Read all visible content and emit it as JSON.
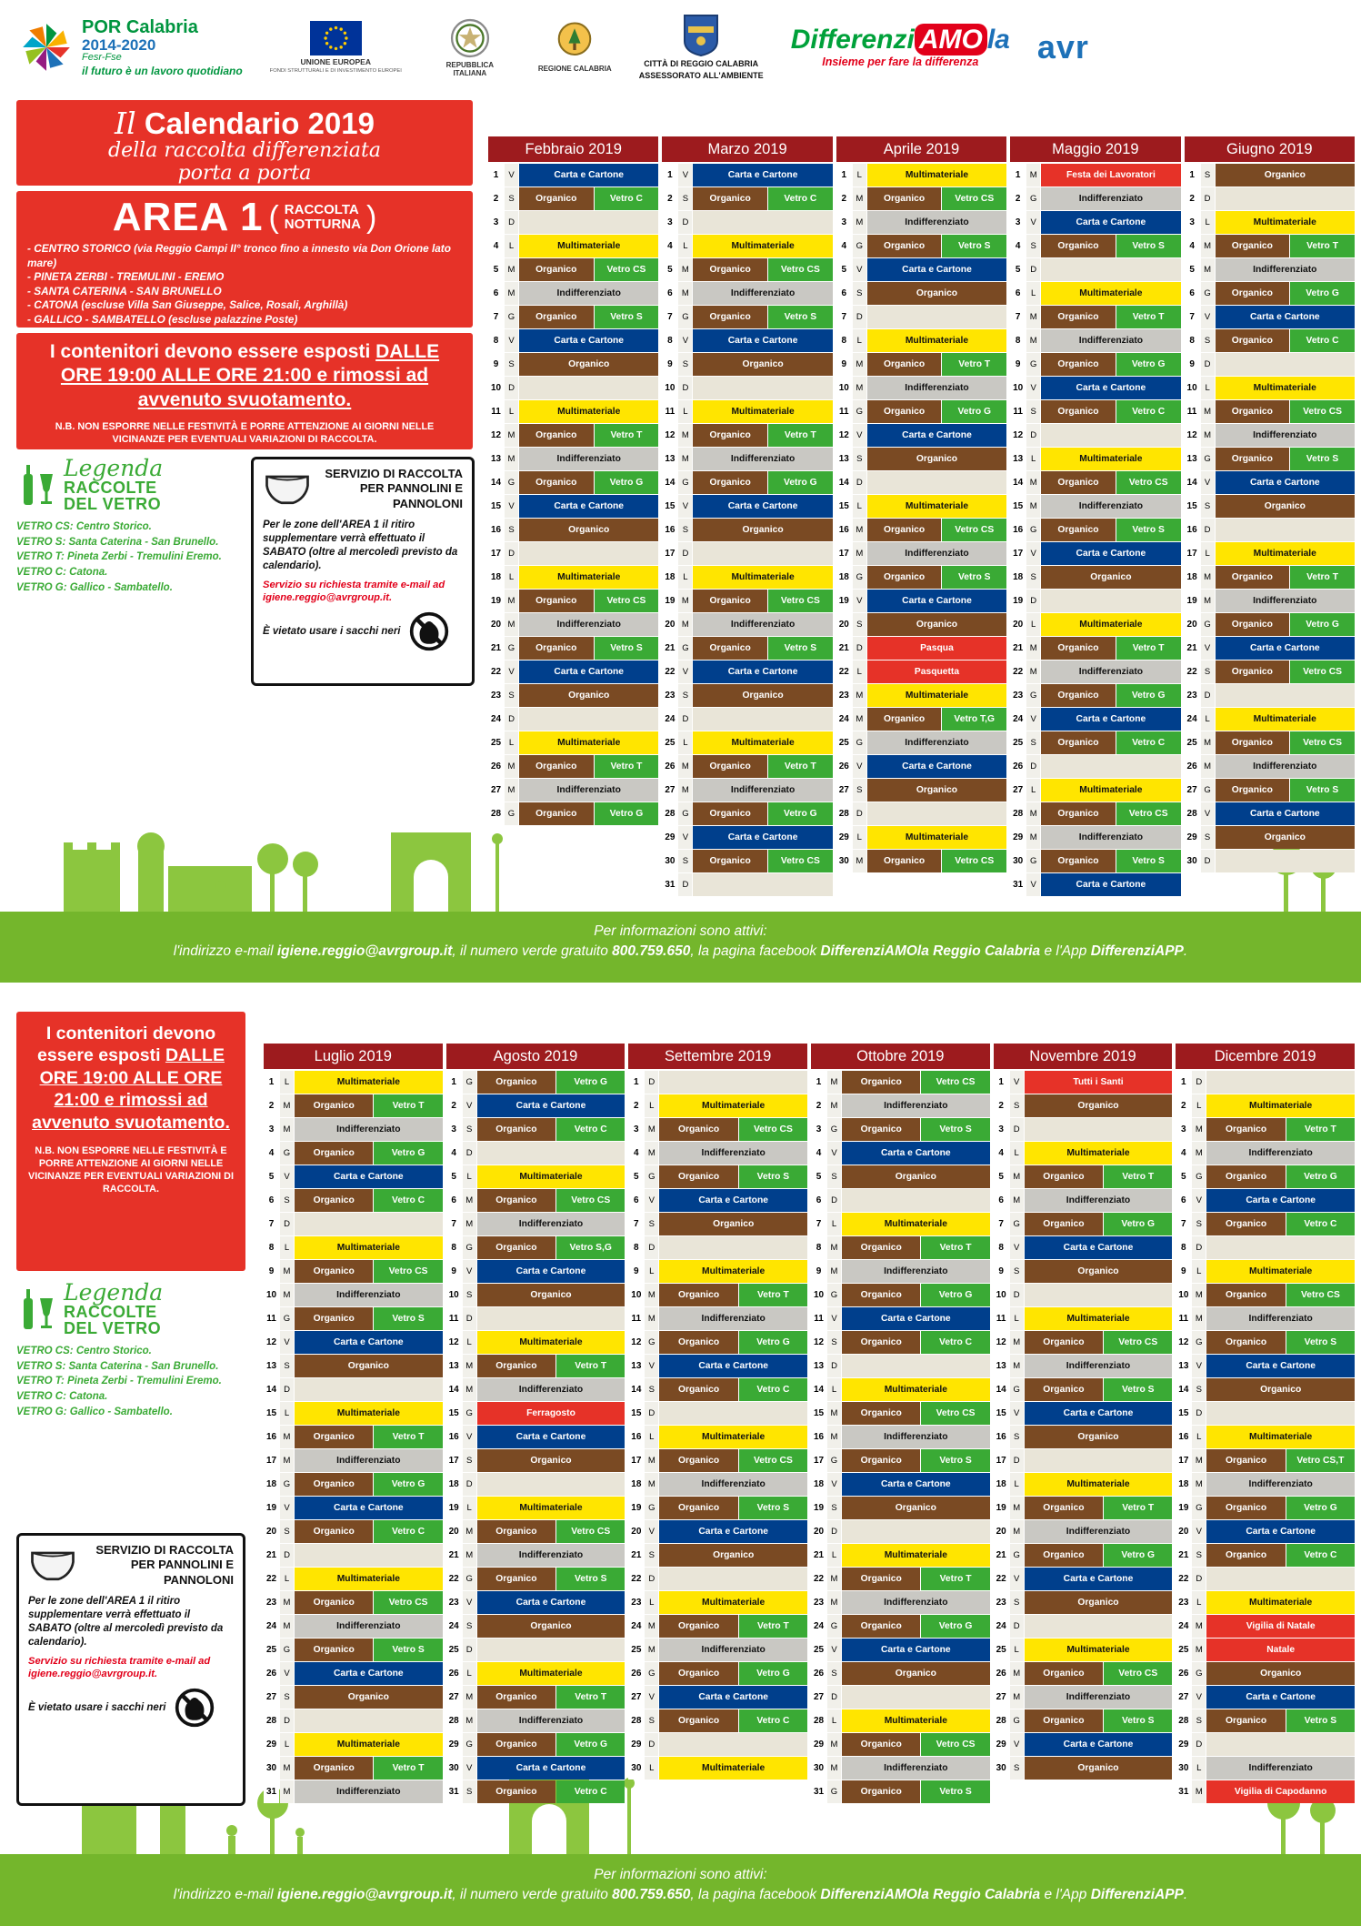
{
  "header": {
    "por": {
      "name": "POR Calabria",
      "years": "2014-2020",
      "program": "Fesr-Fse",
      "tagline": "il futuro è un lavoro quotidiano"
    },
    "eu": {
      "name": "UNIONE EUROPEA",
      "sub": "FONDI STRUTTURALI E DI INVESTIMENTO EUROPEI"
    },
    "repubblica": {
      "name": "REPUBBLICA ITALIANA"
    },
    "regione": {
      "name": "REGIONE CALABRIA"
    },
    "city": {
      "line1": "CITTÀ DI REGGIO CALABRIA",
      "line2": "ASSESSORATO ALL'AMBIENTE"
    },
    "differenziamola": {
      "part1": "Differenzi",
      "part2": "AMO",
      "part3": "la",
      "tagline": "Insieme per fare la differenza"
    },
    "avr": {
      "name": "avr"
    }
  },
  "intro": {
    "script1": "Il",
    "title": "Calendario 2019",
    "sub1": "della raccolta differenziata",
    "sub2": "porta a porta"
  },
  "area": {
    "title": "AREA 1",
    "paren_open": "(",
    "paren_close": ")",
    "subtitle_line1": "RACCOLTA",
    "subtitle_line2": "NOTTURNA",
    "zones": [
      "- CENTRO STORICO (via Reggio Campi II° tronco fino a innesto via Don Orione lato mare)",
      "- PINETA ZERBI - TREMULINI - EREMO",
      "- SANTA CATERINA - SAN BRUNELLO",
      "- CATONA (escluse Villa San Giuseppe, Salice, Rosali, Arghillà)",
      "- GALLICO - SAMBATELLO (escluse palazzine Poste)"
    ]
  },
  "notice": {
    "plain": "I contenitori devono essere esposti ",
    "underlined": "DALLE ORE 19:00 ALLE ORE 21:00 e rimossi ad avvenuto svuotamento.",
    "nb": "N.B. NON ESPORRE NELLE FESTIVITÀ E PORRE ATTENZIONE AI GIORNI NELLE VICINANZE PER EVENTUALI VARIAZIONI DI RACCOLTA."
  },
  "legend": {
    "title": "Legenda",
    "sub1": "RACCOLTE",
    "sub2": "DEL VETRO",
    "items": [
      {
        "code": "VETRO CS:",
        "desc": "Centro Storico."
      },
      {
        "code": "VETRO S:",
        "desc": "Santa Caterina - San Brunello."
      },
      {
        "code": "VETRO T:",
        "desc": "Pineta Zerbi - Tremulini Eremo."
      },
      {
        "code": "VETRO C:",
        "desc": "Catona."
      },
      {
        "code": "VETRO G:",
        "desc": "Gallico - Sambatello."
      }
    ]
  },
  "pannolini": {
    "title": "SERVIZIO DI RACCOLTA PER PANNOLINI E PANNOLONI",
    "body": "Per le zone dell'AREA 1 il ritiro supplementare verrà effettuato il SABATO (oltre al mercoledì previsto da calendario).",
    "service": "Servizio su richiesta tramite e-mail ad igiene.reggio@avrgroup.it.",
    "ban": "È vietato usare i sacchi neri"
  },
  "footer": {
    "intro": "Per informazioni sono attivi:",
    "part1": "l'indirizzo e-mail ",
    "email": "igiene.reggio@avrgroup.it",
    "part2": ", il numero verde gratuito ",
    "number": "800.759.650",
    "part3": ", la pagina facebook ",
    "facebook": "DifferenziAMOla Reggio Calabria",
    "part4": " e l'App ",
    "app": "DifferenziAPP",
    "part5": "."
  },
  "labels": {
    "C": "Carta e Cartone",
    "M": "Multimateriale",
    "I": "Indifferenziato",
    "O": "Organico",
    "V": "Vetro"
  },
  "colors": {
    "carta": "#003f8c",
    "multi": "#ffe500",
    "indiff": "#c9c8c3",
    "organico": "#7a4a23",
    "vetro": "#3aaa35",
    "holiday": "#e63228",
    "empty": "#e9e5d8",
    "month_header": "#9d1b1e",
    "red_box": "#e63228",
    "green_strip": "#74b62c",
    "silhouette": "#8cc63f",
    "legend_green": "#3aaa35"
  },
  "months_top": [
    {
      "name": "Febbraio 2019",
      "days": [
        "V|C",
        "S|O:C",
        "D|",
        "L|M",
        "M|O:CS",
        "M|I",
        "G|O:S",
        "V|C",
        "S|O",
        "D|",
        "L|M",
        "M|O:T",
        "M|I",
        "G|O:G",
        "V|C",
        "S|O",
        "D|",
        "L|M",
        "M|O:CS",
        "M|I",
        "G|O:S",
        "V|C",
        "S|O",
        "D|",
        "L|M",
        "M|O:T",
        "M|I",
        "G|O:G"
      ]
    },
    {
      "name": "Marzo 2019",
      "days": [
        "V|C",
        "S|O:C",
        "D|",
        "L|M",
        "M|O:CS",
        "M|I",
        "G|O:S",
        "V|C",
        "S|O",
        "D|",
        "L|M",
        "M|O:T",
        "M|I",
        "G|O:G",
        "V|C",
        "S|O",
        "D|",
        "L|M",
        "M|O:CS",
        "M|I",
        "G|O:S",
        "V|C",
        "S|O",
        "D|",
        "L|M",
        "M|O:T",
        "M|I",
        "G|O:G",
        "V|C",
        "S|O:CS",
        "D|"
      ]
    },
    {
      "name": "Aprile 2019",
      "days": [
        "L|M",
        "M|O:CS",
        "M|I",
        "G|O:S",
        "V|C",
        "S|O",
        "D|",
        "L|M",
        "M|O:T",
        "M|I",
        "G|O:G",
        "V|C",
        "S|O",
        "D|",
        "L|M",
        "M|O:CS",
        "M|I",
        "G|O:S",
        "V|C",
        "S|O",
        "D|H:Pasqua",
        "L|H:Pasquetta",
        "M|M",
        "M|O:T,G",
        "G|I",
        "V|C",
        "S|O",
        "D|",
        "L|M",
        "M|O:CS"
      ]
    },
    {
      "name": "Maggio 2019",
      "days": [
        "M|H:Festa dei Lavoratori",
        "G|I",
        "V|C",
        "S|O:S",
        "D|",
        "L|M",
        "M|O:T",
        "M|I",
        "G|O:G",
        "V|C",
        "S|O:C",
        "D|",
        "L|M",
        "M|O:CS",
        "M|I",
        "G|O:S",
        "V|C",
        "S|O",
        "D|",
        "L|M",
        "M|O:T",
        "M|I",
        "G|O:G",
        "V|C",
        "S|O:C",
        "D|",
        "L|M",
        "M|O:CS",
        "M|I",
        "G|O:S",
        "V|C"
      ]
    },
    {
      "name": "Giugno 2019",
      "days": [
        "S|O",
        "D|",
        "L|M",
        "M|O:T",
        "M|I",
        "G|O:G",
        "V|C",
        "S|O:C",
        "D|",
        "L|M",
        "M|O:CS",
        "M|I",
        "G|O:S",
        "V|C",
        "S|O",
        "D|",
        "L|M",
        "M|O:T",
        "M|I",
        "G|O:G",
        "V|C",
        "S|O:CS",
        "D|",
        "L|M",
        "M|O:CS",
        "M|I",
        "G|O:S",
        "V|C",
        "S|O",
        "D|"
      ]
    }
  ],
  "months_bottom": [
    {
      "name": "Luglio 2019",
      "days": [
        "L|M",
        "M|O:T",
        "M|I",
        "G|O:G",
        "V|C",
        "S|O:C",
        "D|",
        "L|M",
        "M|O:CS",
        "M|I",
        "G|O:S",
        "V|C",
        "S|O",
        "D|",
        "L|M",
        "M|O:T",
        "M|I",
        "G|O:G",
        "V|C",
        "S|O:C",
        "D|",
        "L|M",
        "M|O:CS",
        "M|I",
        "G|O:S",
        "V|C",
        "S|O",
        "D|",
        "L|M",
        "M|O:T",
        "M|I"
      ]
    },
    {
      "name": "Agosto 2019",
      "days": [
        "G|O:G",
        "V|C",
        "S|O:C",
        "D|",
        "L|M",
        "M|O:CS",
        "M|I",
        "G|O:S,G",
        "V|C",
        "S|O",
        "D|",
        "L|M",
        "M|O:T",
        "M|I",
        "G|H:Ferragosto",
        "V|C",
        "S|O",
        "D|",
        "L|M",
        "M|O:CS",
        "M|I",
        "G|O:S",
        "V|C",
        "S|O",
        "D|",
        "L|M",
        "M|O:T",
        "M|I",
        "G|O:G",
        "V|C",
        "S|O:C"
      ]
    },
    {
      "name": "Settembre 2019",
      "days": [
        "D|",
        "L|M",
        "M|O:CS",
        "M|I",
        "G|O:S",
        "V|C",
        "S|O",
        "D|",
        "L|M",
        "M|O:T",
        "M|I",
        "G|O:G",
        "V|C",
        "S|O:C",
        "D|",
        "L|M",
        "M|O:CS",
        "M|I",
        "G|O:S",
        "V|C",
        "S|O",
        "D|",
        "L|M",
        "M|O:T",
        "M|I",
        "G|O:G",
        "V|C",
        "S|O:C",
        "D|",
        "L|M"
      ]
    },
    {
      "name": "Ottobre 2019",
      "days": [
        "M|O:CS",
        "M|I",
        "G|O:S",
        "V|C",
        "S|O",
        "D|",
        "L|M",
        "M|O:T",
        "M|I",
        "G|O:G",
        "V|C",
        "S|O:C",
        "D|",
        "L|M",
        "M|O:CS",
        "M|I",
        "G|O:S",
        "V|C",
        "S|O",
        "D|",
        "L|M",
        "M|O:T",
        "M|I",
        "G|O:G",
        "V|C",
        "S|O",
        "D|",
        "L|M",
        "M|O:CS",
        "M|I",
        "G|O:S"
      ]
    },
    {
      "name": "Novembre 2019",
      "days": [
        "V|H:Tutti i Santi",
        "S|O",
        "D|",
        "L|M",
        "M|O:T",
        "M|I",
        "G|O:G",
        "V|C",
        "S|O",
        "D|",
        "L|M",
        "M|O:CS",
        "M|I",
        "G|O:S",
        "V|C",
        "S|O",
        "D|",
        "L|M",
        "M|O:T",
        "M|I",
        "G|O:G",
        "V|C",
        "S|O",
        "D|",
        "L|M",
        "M|O:CS",
        "M|I",
        "G|O:S",
        "V|C",
        "S|O"
      ]
    },
    {
      "name": "Dicembre 2019",
      "days": [
        "D|",
        "L|M",
        "M|O:T",
        "M|I",
        "G|O:G",
        "V|C",
        "S|O:C",
        "D|",
        "L|M",
        "M|O:CS",
        "M|I",
        "G|O:S",
        "V|C",
        "S|O",
        "D|",
        "L|M",
        "M|O:CS,T",
        "M|I",
        "G|O:G",
        "V|C",
        "S|O:C",
        "D|",
        "L|M",
        "M|H:Vigilia di Natale",
        "M|H:Natale",
        "G|O",
        "V|C",
        "S|O:S",
        "D|",
        "L|I",
        "M|H:Vigilia di Capodanno"
      ]
    }
  ]
}
